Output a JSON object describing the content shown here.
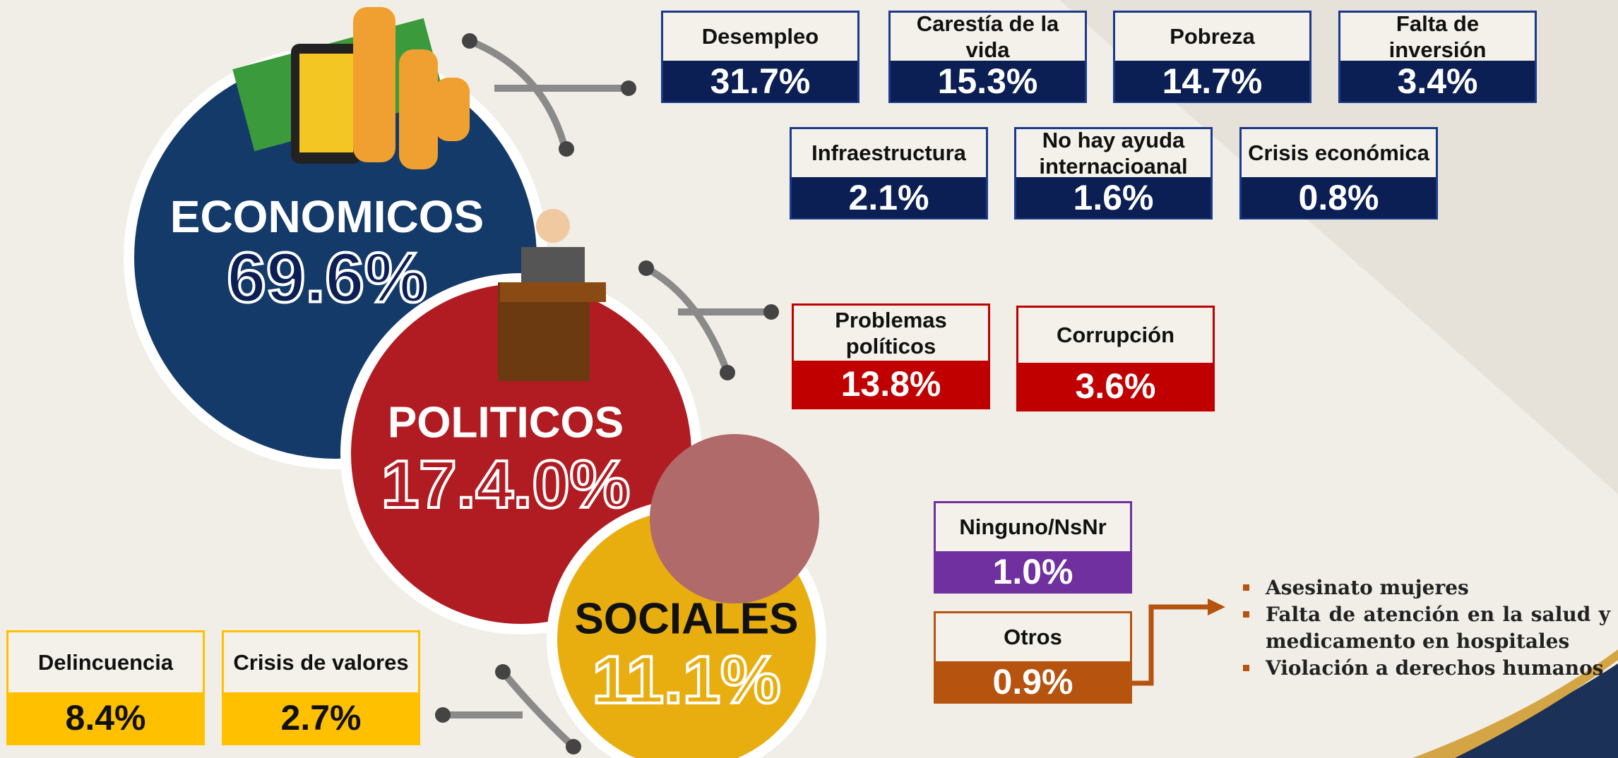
{
  "groups": [
    {
      "title": "ECONOMICOS",
      "total": "69.6%",
      "items": [
        {
          "label": "Desempleo",
          "value": "31.7%"
        },
        {
          "label": "Carestía de la vida",
          "value": "15.3%"
        },
        {
          "label": "Pobreza",
          "value": "14.7%"
        },
        {
          "label": "Falta de inversión",
          "value": "3.4%"
        },
        {
          "label": "Infraestructura",
          "value": "2.1%"
        },
        {
          "label": "No hay ayuda internacioanal",
          "value": "1.6%"
        },
        {
          "label": "Crisis económica",
          "value": "0.8%"
        }
      ]
    },
    {
      "title": "POLITICOS",
      "total": "17.4.0%",
      "items": [
        {
          "label": "Problemas políticos",
          "value": "13.8%"
        },
        {
          "label": "Corrupción",
          "value": "3.6%"
        }
      ]
    },
    {
      "title": "SOCIALES",
      "total": "11.1%",
      "items": [
        {
          "label": "Delincuencia",
          "value": "8.4%"
        },
        {
          "label": "Crisis de valores",
          "value": "2.7%"
        }
      ]
    }
  ],
  "others": [
    {
      "label": "Ninguno/NsNr",
      "value": "1.0%"
    },
    {
      "label": "Otros",
      "value": "0.9%"
    }
  ],
  "otros_details": [
    "Asesinato mujeres",
    "Falta de atención en la salud y medicamento en hospitales",
    "Violación a derechos humanos"
  ]
}
